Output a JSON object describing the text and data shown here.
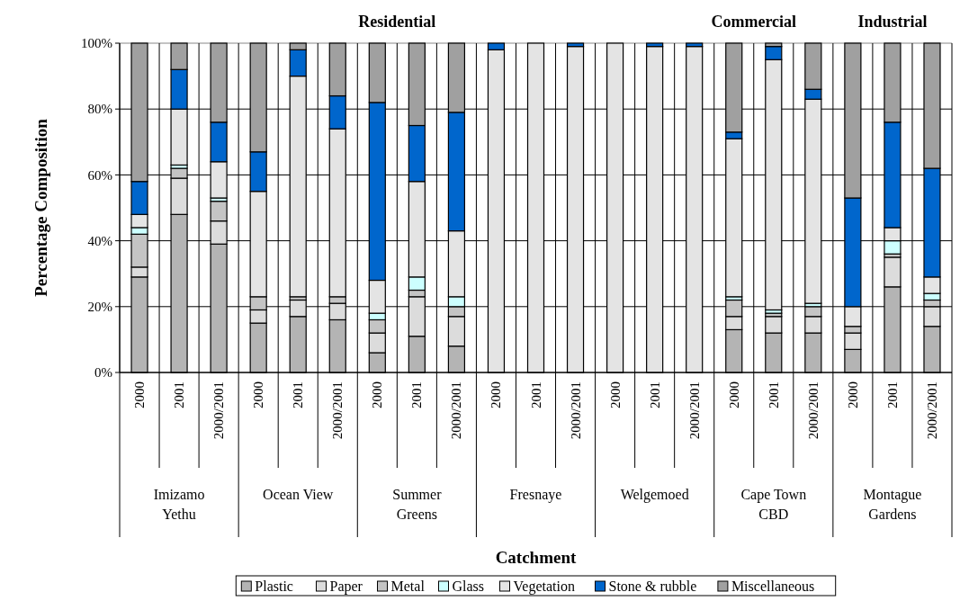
{
  "chart_data": {
    "type": "bar",
    "stacked": true,
    "ylabel": "Percentage Composition",
    "categories": [
      "2000",
      "2001",
      "2000/2001",
      "2000",
      "2001",
      "2000/2001",
      "2000",
      "2001",
      "2000/2001",
      "2000",
      "2001",
      "2000/2001",
      "2000",
      "2001",
      "2000/2001",
      "2000",
      "2001",
      "2000/2001",
      "2000",
      "2001",
      "2000/2001"
    ],
    "series": [
      {
        "name": "Plastic",
        "color": "#b4b4b4",
        "values": [
          29,
          48,
          39,
          15,
          17,
          16,
          6,
          11,
          8,
          0,
          0,
          0,
          0,
          0,
          0,
          13,
          12,
          12,
          7,
          26,
          14
        ]
      },
      {
        "name": "Paper",
        "color": "#dcdcdc",
        "values": [
          3,
          11,
          7,
          4,
          5,
          5,
          6,
          12,
          9,
          0,
          0,
          0,
          0,
          0,
          0,
          4,
          5,
          5,
          5,
          9,
          6
        ]
      },
      {
        "name": "Metal",
        "color": "#c4c4c4",
        "values": [
          10,
          3,
          6,
          4,
          1,
          2,
          4,
          2,
          3,
          0,
          0,
          0,
          0,
          0,
          0,
          5,
          1,
          3,
          2,
          1,
          2
        ]
      },
      {
        "name": "Glass",
        "color": "#ccffff",
        "values": [
          2,
          1,
          1,
          0,
          0,
          0,
          2,
          4,
          3,
          0,
          0,
          0,
          0,
          0,
          0,
          1,
          1,
          1,
          0,
          4,
          2
        ]
      },
      {
        "name": "Vegetation",
        "color": "#e4e4e4",
        "values": [
          4,
          17,
          11,
          32,
          67,
          51,
          10,
          29,
          20,
          98,
          100,
          99,
          100,
          99,
          99,
          48,
          76,
          62,
          6,
          4,
          5
        ]
      },
      {
        "name": "Stone & rubble",
        "color": "#0066cc",
        "values": [
          10,
          12,
          12,
          12,
          8,
          10,
          54,
          17,
          36,
          2,
          0,
          1,
          0,
          1,
          1,
          2,
          4,
          3,
          33,
          32,
          33
        ]
      },
      {
        "name": "Miscellaneous",
        "color": "#a0a0a0",
        "values": [
          42,
          8,
          24,
          33,
          2,
          16,
          18,
          25,
          21,
          0,
          0,
          0,
          0,
          0,
          0,
          27,
          1,
          14,
          47,
          24,
          38
        ]
      }
    ],
    "ylim": [
      0,
      100
    ],
    "yticks": [
      {
        "value": 0,
        "label": "0%"
      },
      {
        "value": 20,
        "label": "20%"
      },
      {
        "value": 40,
        "label": "40%"
      },
      {
        "value": 60,
        "label": "60%"
      },
      {
        "value": 80,
        "label": "80%"
      },
      {
        "value": 100,
        "label": "100%"
      }
    ],
    "grid": true,
    "legend": "bottom",
    "annotations": [
      "Imizamo Yethu",
      "Ocean View",
      "Summer Greens",
      "Fresnaye",
      "Welgemoed",
      "Cape Town CBD",
      "Montague Gardens",
      "Residential",
      "Commercial",
      "Industrial",
      "Catchment"
    ]
  }
}
